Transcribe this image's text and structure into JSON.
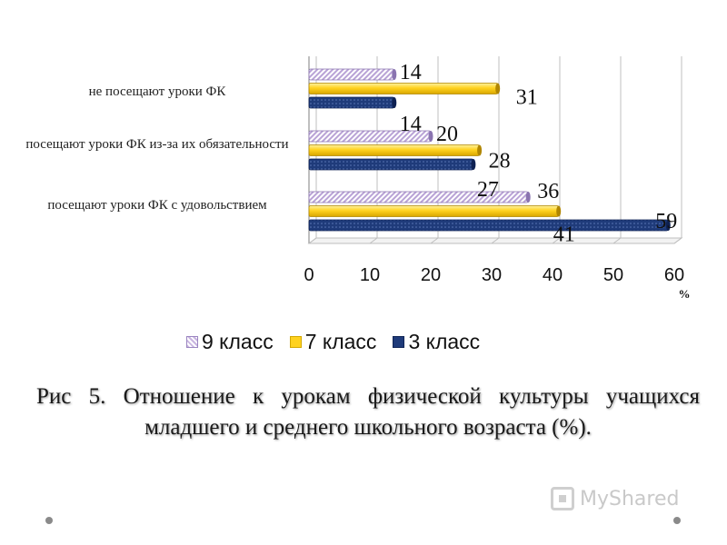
{
  "chart_data": {
    "type": "bar",
    "orientation": "horizontal",
    "categories": [
      "не посещают уроки ФК",
      "посещают уроки ФК из-за их обязательности",
      "посещают  уроки ФК с удовольствием"
    ],
    "series": [
      {
        "name": "9 класс",
        "values": [
          14,
          20,
          36
        ],
        "color": "#c9b5e0"
      },
      {
        "name": "7 класс",
        "values": [
          31,
          28,
          41
        ],
        "color": "#ffd21f"
      },
      {
        "name": "3 класс",
        "values": [
          14,
          27,
          59
        ],
        "color": "#1f3b7a"
      }
    ],
    "xlim": [
      0,
      60
    ],
    "xticks": [
      "0",
      "10",
      "20",
      "30",
      "40",
      "50",
      "60"
    ],
    "xlabel": "%",
    "grid": true,
    "legend_position": "bottom"
  },
  "caption": "Рис 5. Отношение к урокам физической культуры учащихся младшего и среднего школьного возраста (%).",
  "watermark": {
    "text": "MyShared",
    "icon": "myshared-logo-icon"
  },
  "colors": {
    "grid": "#bfbfbf",
    "axis": "#7f7f7f"
  }
}
